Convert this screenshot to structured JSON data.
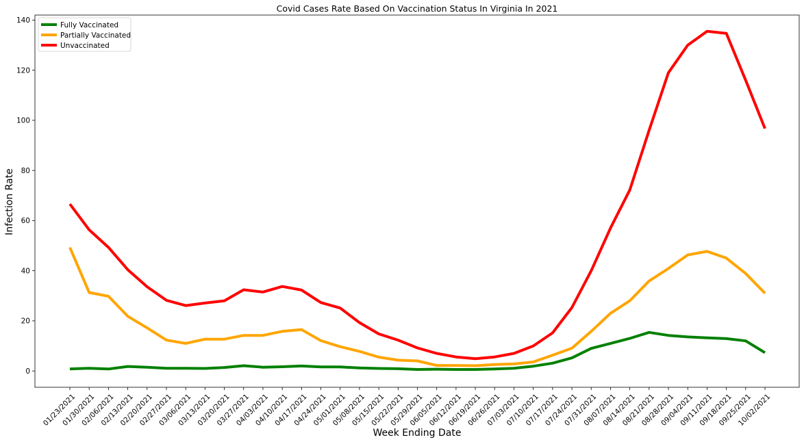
{
  "chart_data": {
    "type": "line",
    "title": "Covid Cases Rate Based On Vaccination Status In Virginia In 2021",
    "xlabel": "Week Ending Date",
    "ylabel": "Infection Rate",
    "ylim": [
      -6.5,
      142
    ],
    "yticks": [
      0,
      20,
      40,
      60,
      80,
      100,
      120,
      140
    ],
    "grid": false,
    "legend_position": "top-left",
    "categories": [
      "01/23/2021",
      "01/30/2021",
      "02/06/2021",
      "02/13/2021",
      "02/20/2021",
      "02/27/2021",
      "03/06/2021",
      "03/13/2021",
      "03/20/2021",
      "03/27/2021",
      "04/03/2021",
      "04/10/2021",
      "04/17/2021",
      "04/24/2021",
      "05/01/2021",
      "05/08/2021",
      "05/15/2021",
      "05/22/2021",
      "05/29/2021",
      "06/05/2021",
      "06/12/2021",
      "06/19/2021",
      "06/26/2021",
      "07/03/2021",
      "07/10/2021",
      "07/17/2021",
      "07/24/2021",
      "07/31/2021",
      "08/07/2021",
      "08/14/2021",
      "08/21/2021",
      "08/28/2021",
      "09/04/2021",
      "09/11/2021",
      "09/18/2021",
      "09/25/2021",
      "10/02/2021"
    ],
    "series": [
      {
        "name": "Fully Vaccinated",
        "color": "#008000",
        "values": [
          0.8,
          1.1,
          0.8,
          1.8,
          1.5,
          1.1,
          1.1,
          1.0,
          1.4,
          2.1,
          1.5,
          1.7,
          2.0,
          1.6,
          1.6,
          1.2,
          1.0,
          0.9,
          0.6,
          0.7,
          0.6,
          0.6,
          0.8,
          1.1,
          1.9,
          3.1,
          5.2,
          9.0,
          11.0,
          13.0,
          15.4,
          14.2,
          13.6,
          13.2,
          12.9,
          12.0,
          7.3
        ]
      },
      {
        "name": "Partially Vaccinated",
        "color": "#ffa500",
        "values": [
          49.3,
          31.3,
          29.8,
          21.8,
          17.2,
          12.3,
          11.0,
          12.7,
          12.7,
          14.2,
          14.2,
          15.8,
          16.5,
          12.1,
          9.7,
          7.8,
          5.5,
          4.3,
          4.0,
          2.2,
          2.2,
          2.1,
          2.6,
          2.8,
          3.6,
          6.3,
          9.1,
          15.8,
          23.0,
          28.0,
          35.9,
          40.9,
          46.3,
          47.7,
          45.0,
          38.9,
          31.0
        ]
      },
      {
        "name": "Unvaccinated",
        "color": "#ff0000",
        "values": [
          66.6,
          56.3,
          49.3,
          40.4,
          33.6,
          28.2,
          26.1,
          27.1,
          28.0,
          32.4,
          31.5,
          33.7,
          32.3,
          27.3,
          25.1,
          19.3,
          14.8,
          12.3,
          9.2,
          7.0,
          5.6,
          4.9,
          5.6,
          7.0,
          10.0,
          15.2,
          25.3,
          40.0,
          57.0,
          72.2,
          96.0,
          119.0,
          130.0,
          135.5,
          134.7,
          116.0,
          96.7
        ]
      }
    ]
  }
}
